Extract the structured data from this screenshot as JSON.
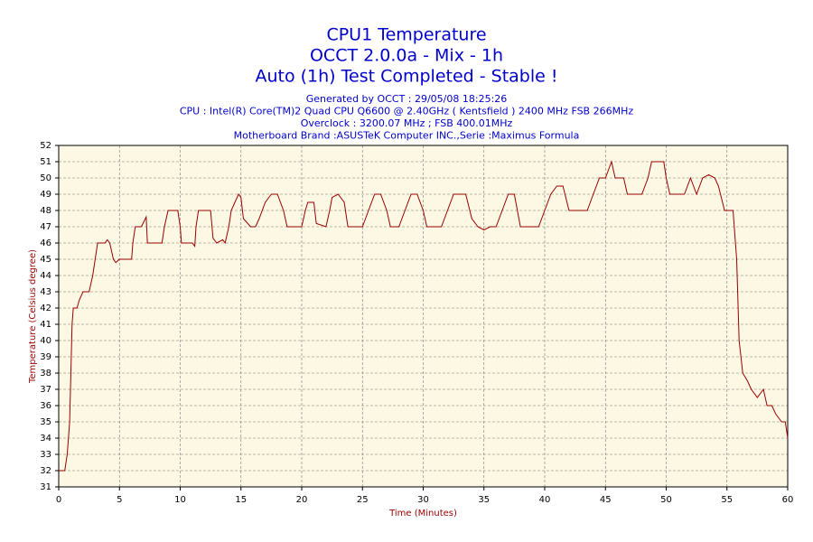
{
  "chart_data": {
    "type": "line",
    "title": [
      "CPU1 Temperature",
      "OCCT 2.0.0a - Mix - 1h",
      "Auto (1h) Test Completed - Stable !"
    ],
    "subtitle": [
      "Generated by OCCT : 29/05/08 18:25:26",
      "CPU : Intel(R) Core(TM)2 Quad CPU Q6600 @ 2.40GHz ( Kentsfield ) 2400 MHz FSB 266MHz",
      "Overclock : 3200.07 MHz ; FSB 400.01MHz",
      "Motherboard Brand :ASUSTeK Computer INC.,Serie :Maximus Formula"
    ],
    "x_label": "Time (Minutes)",
    "y_label": "Temperature (Celsius degree)",
    "xlim": [
      0,
      60
    ],
    "xticks": [
      0,
      5,
      10,
      15,
      20,
      25,
      30,
      35,
      40,
      45,
      50,
      55,
      60
    ],
    "ylim": [
      31,
      52
    ],
    "yticks": [
      31,
      32,
      33,
      34,
      35,
      36,
      37,
      38,
      39,
      40,
      41,
      42,
      43,
      44,
      45,
      46,
      47,
      48,
      49,
      50,
      51,
      52
    ],
    "grid": true,
    "background": "#fdf8e4",
    "series": [
      {
        "name": "CPU1",
        "color": "#990000",
        "x": [
          0,
          0.5,
          0.7,
          0.9,
          1.0,
          1.1,
          1.2,
          1.5,
          1.7,
          2.0,
          2.5,
          2.8,
          3.0,
          3.2,
          3.8,
          4.0,
          4.2,
          4.5,
          4.7,
          5.0,
          6.0,
          6.1,
          6.3,
          6.8,
          7.0,
          7.2,
          7.3,
          8.5,
          8.7,
          9.0,
          9.8,
          10.0,
          10.1,
          11.0,
          11.2,
          11.3,
          11.5,
          12.5,
          12.7,
          13.0,
          13.5,
          13.7,
          14.0,
          14.2,
          14.5,
          14.8,
          15.0,
          15.2,
          15.8,
          16.2,
          16.5,
          17.0,
          17.5,
          18.0,
          18.5,
          18.8,
          20.0,
          20.3,
          20.5,
          21.0,
          21.2,
          22.0,
          22.3,
          22.5,
          23.0,
          23.5,
          23.8,
          25.0,
          25.5,
          26.0,
          26.5,
          27.0,
          27.3,
          28.0,
          28.5,
          29.0,
          29.5,
          30.0,
          30.3,
          31.5,
          32.0,
          32.5,
          33.5,
          34.0,
          34.5,
          35.0,
          35.5,
          36.0,
          36.5,
          37.0,
          37.5,
          38.0,
          39.5,
          40.0,
          40.5,
          41.0,
          41.5,
          42.0,
          43.5,
          44.0,
          44.5,
          45.0,
          45.5,
          45.8,
          46.5,
          46.8,
          48.0,
          48.5,
          48.8,
          49.8,
          50.0,
          50.3,
          51.5,
          52.0,
          52.5,
          53.0,
          53.5,
          54.0,
          54.3,
          54.8,
          55.5,
          55.8,
          56.0,
          56.3,
          56.7,
          57.0,
          57.5,
          58.0,
          58.3,
          58.7,
          59.0,
          59.5,
          59.8,
          60.0
        ],
        "values": [
          32,
          32,
          33,
          35,
          38,
          41,
          42,
          42,
          42.5,
          43,
          43,
          44,
          45,
          46,
          46,
          46.2,
          46,
          45,
          44.8,
          45,
          45,
          46,
          47,
          47,
          47.3,
          47.6,
          46,
          46,
          47,
          48,
          48,
          47,
          46,
          46,
          45.8,
          47,
          48,
          48,
          46.3,
          46,
          46.2,
          46,
          47,
          48,
          48.5,
          49,
          48.8,
          47.5,
          47,
          47,
          47.5,
          48.5,
          49,
          49,
          48,
          47,
          47,
          48,
          48.5,
          48.5,
          47.2,
          47,
          48,
          48.8,
          49,
          48.5,
          47,
          47,
          48,
          49,
          49,
          48,
          47,
          47,
          48,
          49,
          49,
          48,
          47,
          47,
          48,
          49,
          49,
          47.5,
          47,
          46.8,
          47,
          47,
          48,
          49,
          49,
          47,
          47,
          48,
          49,
          49.5,
          49.5,
          48,
          48,
          49,
          50,
          50,
          51,
          50,
          50,
          49,
          49,
          50,
          51,
          51,
          50,
          49,
          49,
          50,
          49,
          50,
          50.2,
          50,
          49.5,
          48,
          48,
          45,
          40,
          38,
          37.5,
          37,
          36.5,
          37,
          36,
          36,
          35.5,
          35,
          35,
          34
        ]
      }
    ]
  }
}
